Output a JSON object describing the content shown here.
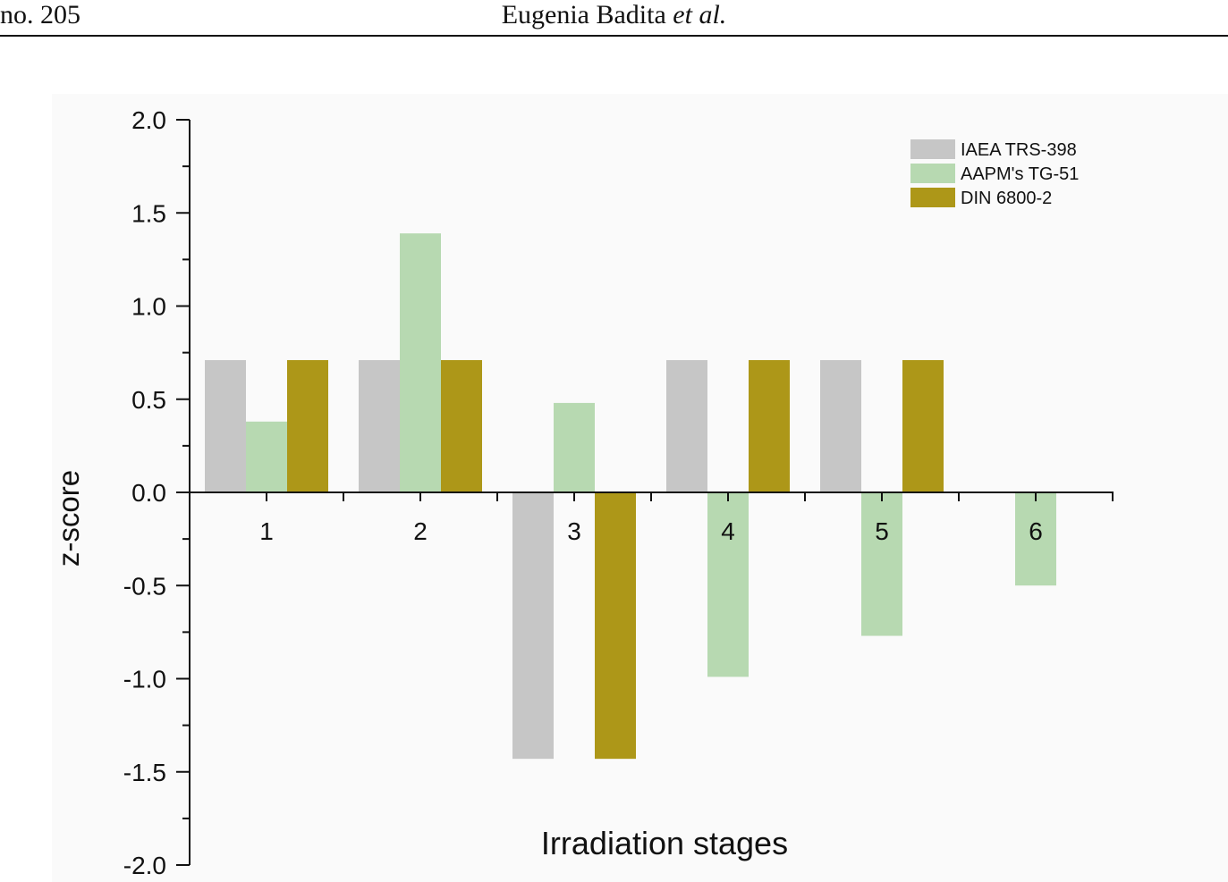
{
  "page": {
    "header_left": "no. 205",
    "header_author": "Eugenia Badita",
    "header_etal": "et al."
  },
  "chart_data": {
    "type": "bar",
    "xlabel": "Irradiation stages",
    "ylabel": "z-score",
    "ylim": [
      -2.0,
      2.0
    ],
    "yticks": [
      "2.0",
      "1.5",
      "1.0",
      "0.5",
      "0.0",
      "-0.5",
      "-1.0",
      "-1.5",
      "-2.0"
    ],
    "categories": [
      "1",
      "2",
      "3",
      "4",
      "5",
      "6"
    ],
    "series": [
      {
        "name": "IAEA TRS-398",
        "color": "#c6c6c6",
        "values": [
          0.71,
          0.71,
          -1.43,
          0.71,
          0.71,
          0
        ]
      },
      {
        "name": "AAPM's TG-51",
        "color": "#b7d9b1",
        "values": [
          0.38,
          1.39,
          0.48,
          -0.99,
          -0.77,
          -0.5
        ]
      },
      {
        "name": "DIN 6800-2",
        "color": "#ad9718",
        "values": [
          0.71,
          0.71,
          -1.43,
          0.71,
          0.71,
          0
        ]
      }
    ],
    "legend": "top-right",
    "grid": false
  }
}
